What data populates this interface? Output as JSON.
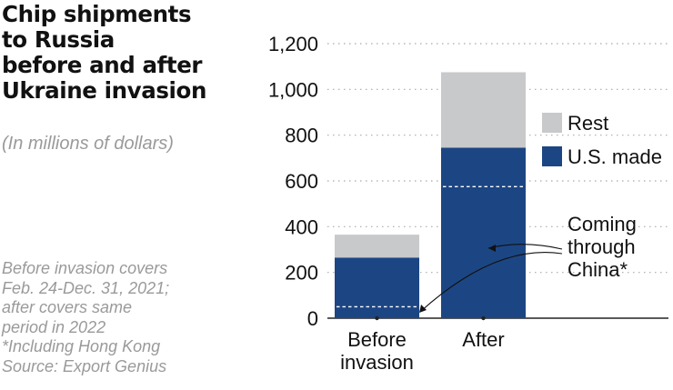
{
  "title_lines": [
    "Chip shipments",
    "to Russia",
    "before and after",
    "Ukraine invasion"
  ],
  "subtitle": "(In millions of dollars)",
  "notes": [
    "Before invasion covers",
    "Feb. 24-Dec. 31, 2021;",
    "after covers same",
    "period in 2022",
    "*Including Hong Kong",
    "Source: Export Genius"
  ],
  "colors": {
    "us_made": "#1c4683",
    "rest": "#c8c9cb",
    "grid": "#a9a9a9",
    "text": "#111111",
    "note": "#9a9a9a"
  },
  "chart_data": {
    "type": "bar",
    "stacked": true,
    "categories": [
      [
        "Before",
        "invasion"
      ],
      [
        "After"
      ]
    ],
    "series": [
      {
        "name": "U.S. made",
        "values": [
          265,
          745
        ],
        "color": "#1c4683"
      },
      {
        "name": "Rest",
        "values": [
          100,
          330
        ],
        "color": "#c8c9cb"
      }
    ],
    "coming_through_china": [
      50,
      575
    ],
    "ylim": [
      0,
      1200
    ],
    "yticks": [
      0,
      200,
      400,
      600,
      800,
      1000,
      1200
    ],
    "ytick_labels": [
      "0",
      "200",
      "400",
      "600",
      "800",
      "1,000",
      "1,200"
    ],
    "grid": true,
    "legend": {
      "placement": "right",
      "items": [
        "Rest",
        "U.S. made"
      ]
    },
    "annotation": {
      "lines": [
        "Coming",
        "through",
        "China*"
      ]
    }
  }
}
